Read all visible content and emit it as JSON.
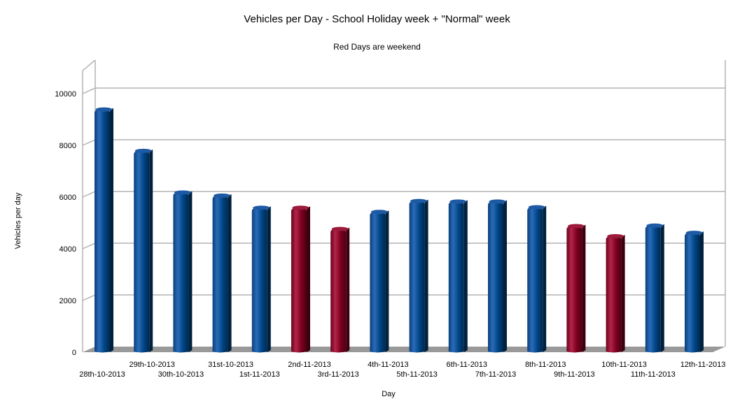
{
  "chart_data": {
    "type": "bar",
    "title": "Vehicles per Day - School Holiday week + \"Normal\" week",
    "subtitle": "Red Days are weekend",
    "xlabel": "Day",
    "ylabel": "Vehicles per day",
    "ylim": [
      0,
      11000
    ],
    "yticks": [
      0,
      2000,
      4000,
      6000,
      8000,
      10000
    ],
    "grid": true,
    "legend": "none",
    "categories": [
      "28th-10-2013",
      "29th-10-2013",
      "30th-10-2013",
      "31st-10-2013",
      "1st-11-2013",
      "2nd-11-2013",
      "3rd-11-2013",
      "4th-11-2013",
      "5th-11-2013",
      "6th-11-2013",
      "7th-11-2013",
      "8th-11-2013",
      "9th-11-2013",
      "10th-11-2013",
      "11th-11-2013",
      "12th-11-2013"
    ],
    "values": [
      9360,
      7760,
      6150,
      6030,
      5560,
      5560,
      4740,
      5400,
      5820,
      5800,
      5800,
      5580,
      4850,
      4460,
      4870,
      4590
    ],
    "weekend": [
      false,
      false,
      false,
      false,
      false,
      true,
      true,
      false,
      false,
      false,
      false,
      false,
      true,
      true,
      false,
      false
    ],
    "colors": {
      "weekday": "#004586",
      "weekend": "#7e0021",
      "grid": "#b3b3b3",
      "floor": "#999999"
    }
  }
}
